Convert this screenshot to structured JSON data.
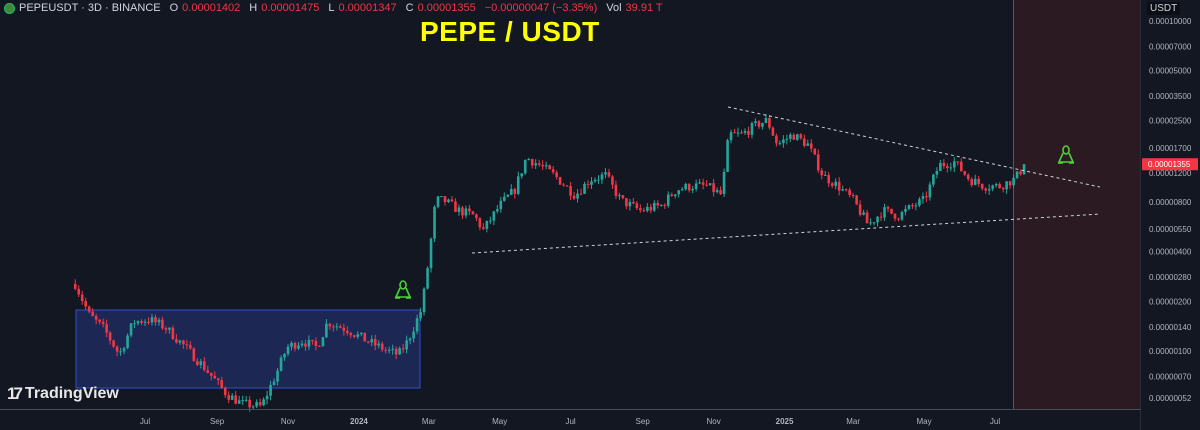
{
  "header": {
    "symbol": "PEPEUSDT · 3D · BINANCE",
    "o_label": "O",
    "o": "0.00001402",
    "h_label": "H",
    "h": "0.00001475",
    "l_label": "L",
    "l": "0.00001347",
    "c_label": "C",
    "c": "0.00001355",
    "change": "−0.00000047 (−3.35%)",
    "vol_label": "Vol",
    "vol": "39.91 T"
  },
  "title": "PEPE / USDT",
  "currency": "USDT",
  "logo": {
    "mark": "17",
    "text": "TradingView"
  },
  "colors": {
    "up": "#26a69a",
    "down": "#f23645",
    "bg": "#131722",
    "title": "#ffff00",
    "zone": "#2b1a22",
    "box": "#1e2b5c"
  },
  "chart_data": {
    "type": "candlestick",
    "scale": "log",
    "current_price": "0.00001355",
    "price_ticks": [
      0.0001,
      7e-05,
      5e-05,
      3.5e-05,
      2.5e-05,
      1.7e-05,
      1.2e-05,
      8e-06,
      5.5e-06,
      4e-06,
      2.8e-06,
      2e-06,
      1.4e-06,
      1e-06,
      7e-07,
      5.2e-07
    ],
    "price_tick_labels": [
      "0.00010000",
      "0.00007000",
      "0.00005000",
      "0.00003500",
      "0.00002500",
      "0.00001700",
      "0.00001200",
      "0.00000800",
      "0.00000550",
      "0.00000400",
      "0.00000280",
      "0.00000200",
      "0.00000140",
      "0.00000100",
      "0.00000070",
      "0.00000052"
    ],
    "time_ticks": [
      {
        "label": "Jul",
        "day": 0
      },
      {
        "label": "Sep",
        "day": 62
      },
      {
        "label": "Nov",
        "day": 123
      },
      {
        "label": "2024",
        "day": 184
      },
      {
        "label": "Mar",
        "day": 244
      },
      {
        "label": "May",
        "day": 305
      },
      {
        "label": "Jul",
        "day": 366
      },
      {
        "label": "Sep",
        "day": 428
      },
      {
        "label": "Nov",
        "day": 489
      },
      {
        "label": "2025",
        "day": 550
      },
      {
        "label": "Mar",
        "day": 609
      },
      {
        "label": "May",
        "day": 670
      },
      {
        "label": "Jul",
        "day": 731
      }
    ],
    "close_path": [
      [
        -60,
        2.55e-06
      ],
      [
        -48,
        1.66e-06
      ],
      [
        -35,
        1.35e-06
      ],
      [
        -22,
        9.5e-07
      ],
      [
        -10,
        1.5e-06
      ],
      [
        4,
        1.55e-06
      ],
      [
        17,
        1.4e-06
      ],
      [
        35,
        1.05e-06
      ],
      [
        52,
        7.8e-07
      ],
      [
        70,
        5.5e-07
      ],
      [
        83,
        4.8e-07
      ],
      [
        100,
        4.6e-07
      ],
      [
        113,
        7.3e-07
      ],
      [
        122,
        1.05e-06
      ],
      [
        135,
        1.15e-06
      ],
      [
        148,
        1.05e-06
      ],
      [
        157,
        1.5e-06
      ],
      [
        174,
        1.35e-06
      ],
      [
        191,
        1.15e-06
      ],
      [
        209,
        1e-06
      ],
      [
        218,
        9.5e-07
      ],
      [
        226,
        1.15e-06
      ],
      [
        238,
        1.8e-06
      ],
      [
        244,
        3.6e-06
      ],
      [
        250,
        8.2e-06
      ],
      [
        257,
        8.2e-06
      ],
      [
        270,
        7.1e-06
      ],
      [
        283,
        6.6e-06
      ],
      [
        291,
        5.4e-06
      ],
      [
        305,
        7.6e-06
      ],
      [
        318,
        9.5e-06
      ],
      [
        328,
        1.49e-05
      ],
      [
        339,
        1.34e-05
      ],
      [
        352,
        1.16e-05
      ],
      [
        370,
        8.8e-06
      ],
      [
        383,
        1.1e-05
      ],
      [
        396,
        1.16e-05
      ],
      [
        409,
        8.2e-06
      ],
      [
        426,
        7.1e-06
      ],
      [
        444,
        7.6e-06
      ],
      [
        457,
        9.5e-06
      ],
      [
        470,
        1e-05
      ],
      [
        483,
        1e-05
      ],
      [
        496,
        8.8e-06
      ],
      [
        502,
        2.05e-05
      ],
      [
        513,
        2.05e-05
      ],
      [
        526,
        2.35e-05
      ],
      [
        535,
        2.5e-05
      ],
      [
        544,
        1.78e-05
      ],
      [
        557,
        2.05e-05
      ],
      [
        570,
        1.78e-05
      ],
      [
        583,
        1.16e-05
      ],
      [
        596,
        1e-05
      ],
      [
        609,
        8.2e-06
      ],
      [
        622,
        5.8e-06
      ],
      [
        635,
        7.1e-06
      ],
      [
        648,
        6.6e-06
      ],
      [
        661,
        7.6e-06
      ],
      [
        670,
        8.2e-06
      ],
      [
        683,
        1.34e-05
      ],
      [
        696,
        1.4e-05
      ],
      [
        709,
        1.1e-05
      ],
      [
        722,
        1e-05
      ],
      [
        735,
        1e-05
      ],
      [
        748,
        1.1e-05
      ],
      [
        757,
        1.355e-05
      ]
    ],
    "candle_days": 3
  }
}
